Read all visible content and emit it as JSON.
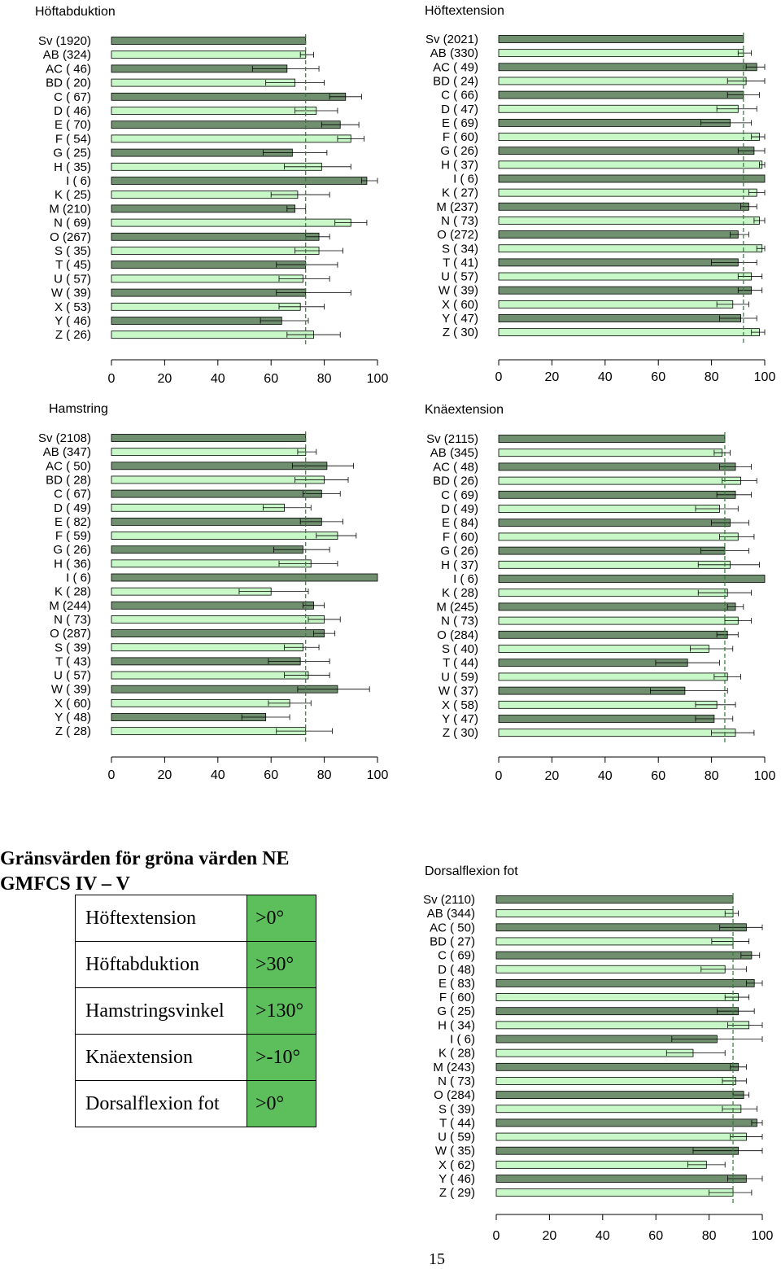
{
  "colors": {
    "dark_bar": "#6f8f6f",
    "light_bar": "#c8f7c8",
    "threshold_cell": "#5cbf5c",
    "reference_line": "#2e7d32"
  },
  "heading": {
    "line1": "Gränsvärden för gröna värden NE",
    "line2": "GMFCS IV – V"
  },
  "limits_table": [
    {
      "name": "Höftextension",
      "value": ">0°"
    },
    {
      "name": "Höftabduktion",
      "value": ">30°"
    },
    {
      "name": "Hamstringsvinkel",
      "value": ">130°"
    },
    {
      "name": "Knäextension",
      "value": ">-10°"
    },
    {
      "name": "Dorsalflexion fot",
      "value": ">0°"
    }
  ],
  "page_number": "15",
  "chart_data": [
    {
      "type": "bar",
      "orientation": "horizontal",
      "title": "Höftabduktion",
      "xlim": [
        0,
        100
      ],
      "xticks": [
        0,
        20,
        40,
        60,
        80,
        100
      ],
      "reference_value": 73,
      "categories": [
        "Sv (1920)",
        "AB (324)",
        "AC ( 46)",
        "BD ( 20)",
        "C ( 67)",
        "D ( 46)",
        "E ( 70)",
        "F ( 54)",
        "G ( 25)",
        "H ( 35)",
        "I ( 6)",
        "K ( 25)",
        "M (210)",
        "N ( 69)",
        "O (267)",
        "S ( 35)",
        "T ( 45)",
        "U ( 57)",
        "W ( 39)",
        "X ( 53)",
        "Y ( 46)",
        "Z ( 26)"
      ],
      "values": [
        73,
        73,
        66,
        69,
        88,
        77,
        86,
        90,
        68,
        79,
        96,
        70,
        69,
        90,
        78,
        78,
        73,
        72,
        73,
        71,
        64,
        76
      ],
      "error_low": [
        73,
        71,
        53,
        58,
        82,
        69,
        79,
        85,
        57,
        65,
        94,
        60,
        66,
        84,
        73,
        69,
        62,
        63,
        62,
        63,
        56,
        66
      ],
      "error_high": [
        73,
        76,
        78,
        80,
        94,
        85,
        93,
        95,
        81,
        90,
        100,
        82,
        73,
        96,
        82,
        87,
        85,
        82,
        90,
        80,
        74,
        86
      ]
    },
    {
      "type": "bar",
      "orientation": "horizontal",
      "title": "Höftextension",
      "xlim": [
        0,
        100
      ],
      "xticks": [
        0,
        20,
        40,
        60,
        80,
        100
      ],
      "reference_value": 92,
      "categories": [
        "Sv (2021)",
        "AB (330)",
        "AC ( 49)",
        "BD ( 24)",
        "C ( 66)",
        "D ( 47)",
        "E ( 69)",
        "F ( 60)",
        "G ( 26)",
        "H ( 37)",
        "I ( 6)",
        "K ( 27)",
        "M (237)",
        "N ( 73)",
        "O (272)",
        "S ( 34)",
        "T ( 41)",
        "U ( 57)",
        "W ( 39)",
        "X ( 60)",
        "Y ( 47)",
        "Z ( 30)"
      ],
      "values": [
        92,
        92,
        97,
        93,
        92,
        90,
        87,
        98,
        96,
        99,
        100,
        97,
        94,
        98,
        90,
        99,
        90,
        95,
        95,
        88,
        91,
        98
      ],
      "error_low": [
        92,
        90,
        93,
        86,
        86,
        82,
        76,
        95,
        90,
        98,
        100,
        94,
        91,
        96,
        87,
        97,
        80,
        90,
        90,
        82,
        83,
        95
      ],
      "error_high": [
        92,
        95,
        100,
        100,
        98,
        97,
        95,
        100,
        100,
        100,
        100,
        100,
        97,
        100,
        94,
        100,
        97,
        99,
        99,
        94,
        97,
        100
      ]
    },
    {
      "type": "bar",
      "orientation": "horizontal",
      "title": "Hamstring",
      "xlim": [
        0,
        100
      ],
      "xticks": [
        0,
        20,
        40,
        60,
        80,
        100
      ],
      "reference_value": 73,
      "categories": [
        "Sv (2108)",
        "AB (347)",
        "AC ( 50)",
        "BD ( 28)",
        "C ( 67)",
        "D ( 49)",
        "E ( 82)",
        "F ( 59)",
        "G ( 26)",
        "H ( 36)",
        "I ( 6)",
        "K ( 28)",
        "M (244)",
        "N ( 73)",
        "O (287)",
        "S ( 39)",
        "T ( 43)",
        "U ( 57)",
        "W ( 39)",
        "X ( 60)",
        "Y ( 48)",
        "Z ( 28)"
      ],
      "values": [
        73,
        73,
        81,
        80,
        79,
        65,
        79,
        85,
        72,
        75,
        100,
        60,
        76,
        80,
        80,
        72,
        71,
        74,
        85,
        67,
        58,
        73
      ],
      "error_low": [
        73,
        70,
        68,
        69,
        72,
        57,
        71,
        77,
        61,
        63,
        100,
        48,
        72,
        74,
        76,
        65,
        59,
        65,
        70,
        59,
        49,
        62
      ],
      "error_high": [
        73,
        77,
        91,
        89,
        86,
        75,
        87,
        92,
        82,
        85,
        100,
        74,
        80,
        86,
        84,
        78,
        82,
        82,
        97,
        75,
        67,
        83
      ]
    },
    {
      "type": "bar",
      "orientation": "horizontal",
      "title": "Knäextension",
      "xlim": [
        0,
        100
      ],
      "xticks": [
        0,
        20,
        40,
        60,
        80,
        100
      ],
      "reference_value": 85,
      "categories": [
        "Sv (2115)",
        "AB (345)",
        "AC ( 48)",
        "BD ( 26)",
        "C ( 69)",
        "D ( 49)",
        "E ( 84)",
        "F ( 60)",
        "G ( 26)",
        "H ( 37)",
        "I ( 6)",
        "K ( 28)",
        "M (245)",
        "N ( 73)",
        "O (284)",
        "S ( 40)",
        "T ( 44)",
        "U ( 59)",
        "W ( 37)",
        "X ( 58)",
        "Y ( 47)",
        "Z ( 30)"
      ],
      "values": [
        85,
        84,
        89,
        91,
        89,
        83,
        87,
        90,
        85,
        87,
        100,
        86,
        89,
        90,
        86,
        79,
        71,
        86,
        70,
        82,
        81,
        89
      ],
      "error_low": [
        85,
        81,
        83,
        84,
        82,
        74,
        80,
        83,
        76,
        75,
        100,
        75,
        86,
        85,
        82,
        72,
        59,
        81,
        57,
        74,
        74,
        80
      ],
      "error_high": [
        85,
        87,
        95,
        97,
        95,
        90,
        94,
        96,
        94,
        98,
        100,
        95,
        92,
        95,
        90,
        88,
        83,
        91,
        86,
        89,
        88,
        96
      ]
    },
    {
      "type": "bar",
      "orientation": "horizontal",
      "title": "Dorsalflexion fot",
      "xlim": [
        0,
        100
      ],
      "xticks": [
        0,
        20,
        40,
        60,
        80,
        100
      ],
      "reference_value": 89,
      "categories": [
        "Sv (2110)",
        "AB (344)",
        "AC ( 50)",
        "BD ( 27)",
        "C ( 69)",
        "D ( 48)",
        "E ( 83)",
        "F ( 60)",
        "G ( 25)",
        "H ( 34)",
        "I ( 6)",
        "K ( 28)",
        "M (243)",
        "N ( 73)",
        "O (284)",
        "S ( 39)",
        "T ( 44)",
        "U ( 59)",
        "W ( 35)",
        "X ( 62)",
        "Y ( 46)",
        "Z ( 29)"
      ],
      "values": [
        89,
        89,
        94,
        89,
        96,
        86,
        97,
        91,
        91,
        95,
        83,
        74,
        91,
        90,
        93,
        92,
        98,
        94,
        91,
        79,
        94,
        89
      ],
      "error_low": [
        89,
        86,
        84,
        81,
        92,
        77,
        94,
        86,
        83,
        87,
        66,
        64,
        88,
        85,
        89,
        85,
        96,
        88,
        74,
        72,
        87,
        80
      ],
      "error_high": [
        89,
        91,
        100,
        95,
        99,
        94,
        100,
        95,
        97,
        100,
        100,
        86,
        94,
        94,
        95,
        98,
        100,
        100,
        100,
        86,
        100,
        96
      ]
    }
  ]
}
